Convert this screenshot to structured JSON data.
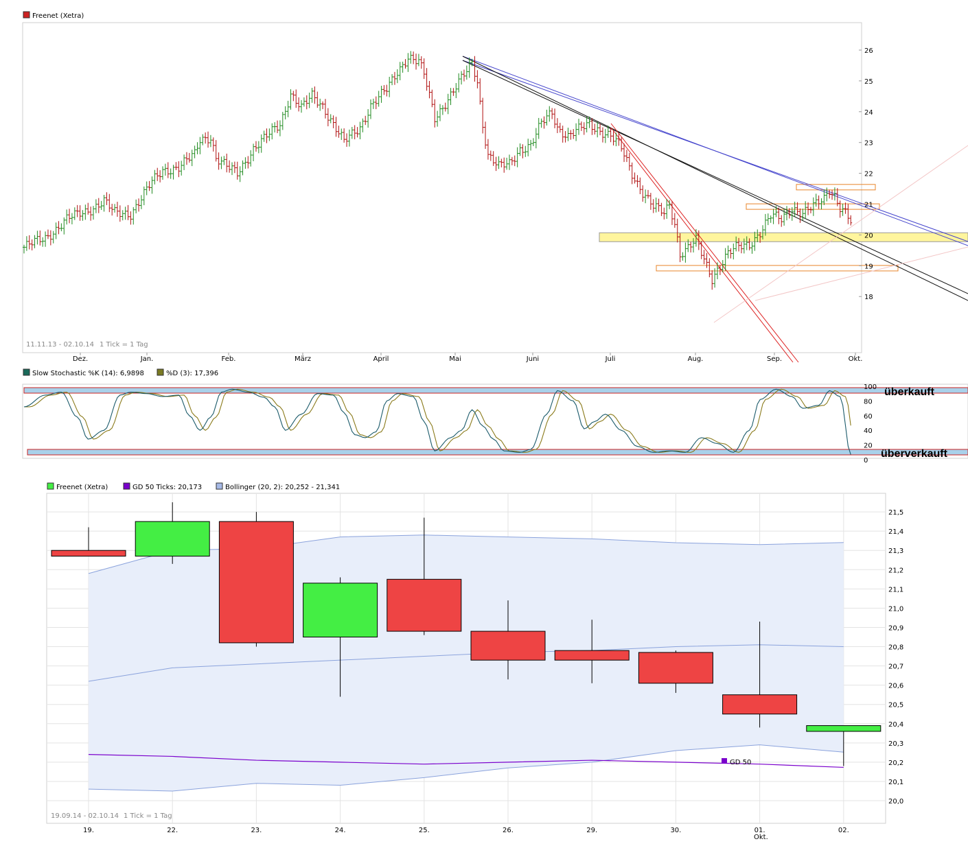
{
  "chart_data": [
    {
      "type": "bar",
      "subtype": "ohlc",
      "legend": [
        "Freenet (Xetra)"
      ],
      "range_label": "11.11.13 - 02.10.14",
      "tick_label": "1 Tick = 1 Tag",
      "y_ticks": [
        18,
        19,
        20,
        21,
        22,
        23,
        24,
        25,
        26
      ],
      "ylim": [
        17.6,
        26.4
      ],
      "x_ticks": [
        "Dez.",
        "Jan.",
        "Feb.",
        "März",
        "April",
        "Mai",
        "Juni",
        "Juli",
        "Aug.",
        "Sep.",
        "Okt."
      ],
      "close_path": [
        [
          0,
          19.6
        ],
        [
          8,
          19.9
        ],
        [
          16,
          20.5
        ],
        [
          24,
          20.8
        ],
        [
          30,
          21.1
        ],
        [
          34,
          20.7
        ],
        [
          40,
          20.7
        ],
        [
          44,
          21.2
        ],
        [
          48,
          21.7
        ],
        [
          52,
          22.1
        ],
        [
          58,
          22.2
        ],
        [
          64,
          22.6
        ],
        [
          66,
          23.1
        ],
        [
          70,
          23.2
        ],
        [
          72,
          22.5
        ],
        [
          76,
          22.2
        ],
        [
          80,
          22.0
        ],
        [
          86,
          22.8
        ],
        [
          90,
          23.1
        ],
        [
          96,
          23.6
        ],
        [
          100,
          24.6
        ],
        [
          104,
          24.1
        ],
        [
          108,
          24.5
        ],
        [
          112,
          24.2
        ],
        [
          116,
          23.6
        ],
        [
          120,
          23.0
        ],
        [
          126,
          23.5
        ],
        [
          130,
          24.2
        ],
        [
          136,
          24.7
        ],
        [
          140,
          25.3
        ],
        [
          144,
          25.8
        ],
        [
          148,
          25.6
        ],
        [
          150,
          25.2
        ],
        [
          152,
          24.5
        ],
        [
          154,
          23.8
        ],
        [
          158,
          24.3
        ],
        [
          162,
          24.8
        ],
        [
          166,
          25.3
        ],
        [
          168,
          25.6
        ],
        [
          170,
          25.0
        ],
        [
          172,
          23.6
        ],
        [
          174,
          22.6
        ],
        [
          178,
          22.2
        ],
        [
          182,
          22.3
        ],
        [
          186,
          22.8
        ],
        [
          190,
          22.9
        ],
        [
          194,
          23.6
        ],
        [
          198,
          24.0
        ],
        [
          200,
          23.5
        ],
        [
          204,
          23.2
        ],
        [
          208,
          23.4
        ],
        [
          212,
          23.6
        ],
        [
          216,
          23.4
        ],
        [
          220,
          23.2
        ],
        [
          224,
          22.8
        ],
        [
          228,
          22.0
        ],
        [
          232,
          21.4
        ],
        [
          236,
          20.9
        ],
        [
          240,
          20.7
        ],
        [
          242,
          21.0
        ],
        [
          244,
          20.4
        ],
        [
          246,
          19.4
        ],
        [
          248,
          19.5
        ],
        [
          252,
          19.8
        ],
        [
          256,
          19.0
        ],
        [
          258,
          18.6
        ],
        [
          260,
          18.9
        ],
        [
          264,
          19.4
        ],
        [
          268,
          19.6
        ],
        [
          272,
          19.7
        ],
        [
          276,
          20.1
        ],
        [
          280,
          20.6
        ],
        [
          284,
          20.5
        ],
        [
          288,
          20.9
        ],
        [
          292,
          20.7
        ],
        [
          296,
          20.9
        ],
        [
          300,
          21.2
        ],
        [
          302,
          21.5
        ],
        [
          304,
          21.3
        ],
        [
          306,
          20.9
        ],
        [
          308,
          20.7
        ],
        [
          310,
          20.4
        ]
      ],
      "resistance_levels": [
        19.9,
        18.9
      ],
      "annotation_boxes": [
        21.55,
        20.92,
        19.95,
        18.92
      ]
    },
    {
      "type": "line",
      "title": "Slow Stochastic",
      "legend": [
        "Slow Stochastic %K (14): 6,9898",
        "%D (3): 17,396"
      ],
      "y_ticks": [
        0,
        20,
        40,
        60,
        80,
        100
      ],
      "ylim": [
        0,
        100
      ],
      "zones": [
        "überkauft",
        "überverkauft"
      ],
      "k_path": [
        [
          0,
          72
        ],
        [
          8,
          88
        ],
        [
          14,
          92
        ],
        [
          20,
          58
        ],
        [
          24,
          28
        ],
        [
          30,
          40
        ],
        [
          36,
          88
        ],
        [
          40,
          92
        ],
        [
          46,
          90
        ],
        [
          52,
          86
        ],
        [
          58,
          88
        ],
        [
          62,
          60
        ],
        [
          66,
          40
        ],
        [
          70,
          58
        ],
        [
          74,
          92
        ],
        [
          78,
          96
        ],
        [
          84,
          92
        ],
        [
          90,
          85
        ],
        [
          94,
          72
        ],
        [
          98,
          40
        ],
        [
          104,
          62
        ],
        [
          110,
          90
        ],
        [
          116,
          88
        ],
        [
          120,
          64
        ],
        [
          124,
          34
        ],
        [
          128,
          30
        ],
        [
          132,
          38
        ],
        [
          136,
          80
        ],
        [
          140,
          90
        ],
        [
          146,
          86
        ],
        [
          150,
          52
        ],
        [
          154,
          12
        ],
        [
          160,
          30
        ],
        [
          164,
          40
        ],
        [
          168,
          68
        ],
        [
          172,
          46
        ],
        [
          176,
          28
        ],
        [
          180,
          12
        ],
        [
          186,
          10
        ],
        [
          190,
          14
        ],
        [
          196,
          62
        ],
        [
          200,
          94
        ],
        [
          206,
          80
        ],
        [
          210,
          42
        ],
        [
          214,
          52
        ],
        [
          218,
          62
        ],
        [
          224,
          40
        ],
        [
          230,
          18
        ],
        [
          236,
          10
        ],
        [
          242,
          12
        ],
        [
          248,
          10
        ],
        [
          254,
          30
        ],
        [
          260,
          22
        ],
        [
          266,
          10
        ],
        [
          272,
          40
        ],
        [
          276,
          82
        ],
        [
          282,
          96
        ],
        [
          288,
          86
        ],
        [
          292,
          70
        ],
        [
          298,
          74
        ],
        [
          302,
          94
        ],
        [
          306,
          86
        ],
        [
          310,
          7
        ]
      ]
    },
    {
      "type": "candlestick",
      "legend": [
        "Freenet (Xetra)",
        "GD 50 Ticks: 20,173",
        "Bollinger (20, 2): 20,252 - 21,341"
      ],
      "range_label": "19.09.14 - 02.10.14",
      "tick_label": "1 Tick = 1 Tag",
      "ylim": [
        19.9,
        21.65
      ],
      "y_ticks": [
        "20,0",
        "20,1",
        "20,2",
        "20,3",
        "20,4",
        "20,5",
        "20,6",
        "20,7",
        "20,8",
        "20,9",
        "21,0",
        "21,1",
        "21,2",
        "21,3",
        "21,4",
        "21,5"
      ],
      "categories": [
        "19.",
        "22.",
        "23.",
        "24.",
        "25.",
        "26.",
        "29.",
        "30.",
        "01.",
        "02."
      ],
      "okt_label": "Okt.",
      "open": [
        21.3,
        21.27,
        21.45,
        20.85,
        21.15,
        20.88,
        20.78,
        20.77,
        20.55,
        20.36
      ],
      "close": [
        21.27,
        21.45,
        20.82,
        21.13,
        20.88,
        20.73,
        20.73,
        20.61,
        20.45,
        20.39
      ],
      "high": [
        21.42,
        21.55,
        21.5,
        21.16,
        21.47,
        21.04,
        20.94,
        20.78,
        20.93,
        20.39
      ],
      "low": [
        21.27,
        21.23,
        20.8,
        20.54,
        20.86,
        20.63,
        20.61,
        20.56,
        20.38,
        20.18
      ],
      "gd50": [
        20.24,
        20.23,
        20.21,
        20.2,
        20.19,
        20.2,
        20.21,
        20.2,
        20.19,
        20.173
      ],
      "gd50_label": "GD 50",
      "boll_upper": [
        21.18,
        21.3,
        21.31,
        21.37,
        21.38,
        21.37,
        21.36,
        21.34,
        21.33,
        21.341
      ],
      "boll_mid": [
        20.62,
        20.69,
        20.71,
        20.73,
        20.75,
        20.77,
        20.78,
        20.8,
        20.81,
        20.8
      ],
      "boll_lower": [
        20.06,
        20.05,
        20.09,
        20.08,
        20.12,
        20.17,
        20.2,
        20.26,
        20.29,
        20.252
      ],
      "colors": {
        "up": "#44ee44",
        "down": "#ee4444",
        "gd50": "#7a00cc",
        "band_fill": "#e8eefa",
        "band_line": "#8aa2dc"
      }
    }
  ]
}
